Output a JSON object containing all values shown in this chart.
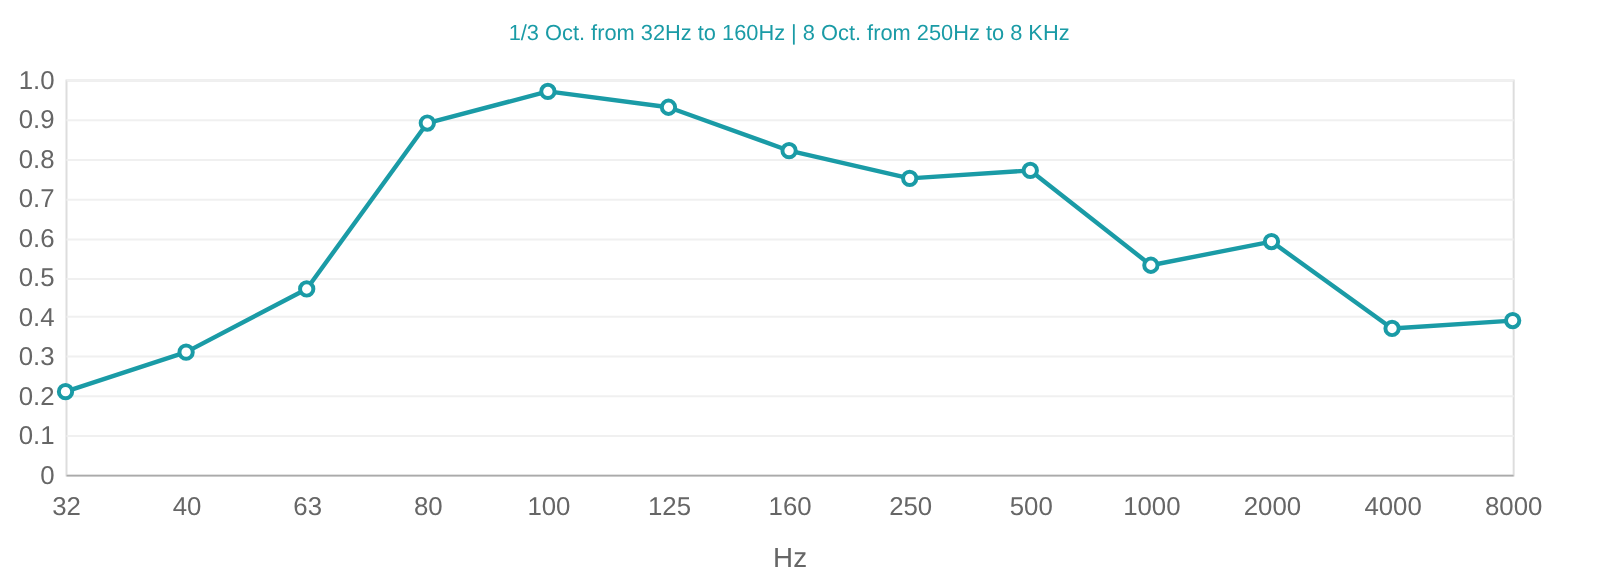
{
  "chart_data": {
    "type": "line",
    "title": "1/3 Oct. from 32Hz to 160Hz | 8 Oct. from 250Hz to 8 KHz",
    "xlabel": "Hz",
    "categories": [
      "32",
      "40",
      "63",
      "80",
      "100",
      "125",
      "160",
      "250",
      "500",
      "1000",
      "2000",
      "4000",
      "8000"
    ],
    "series": [
      {
        "color": "#1a9ba6",
        "values": [
          0.21,
          0.31,
          0.47,
          0.89,
          0.97,
          0.93,
          0.82,
          0.75,
          0.77,
          0.53,
          0.59,
          0.37,
          0.39
        ]
      }
    ],
    "ylim": [
      0,
      1
    ],
    "yticks": [
      0,
      0.1,
      0.2,
      0.3,
      0.4,
      0.5,
      0.6,
      0.7,
      0.8,
      0.9,
      {
        "value": 1,
        "label": "1.0"
      }
    ],
    "grid": "y",
    "marker": "circle",
    "line_style": "solid"
  }
}
